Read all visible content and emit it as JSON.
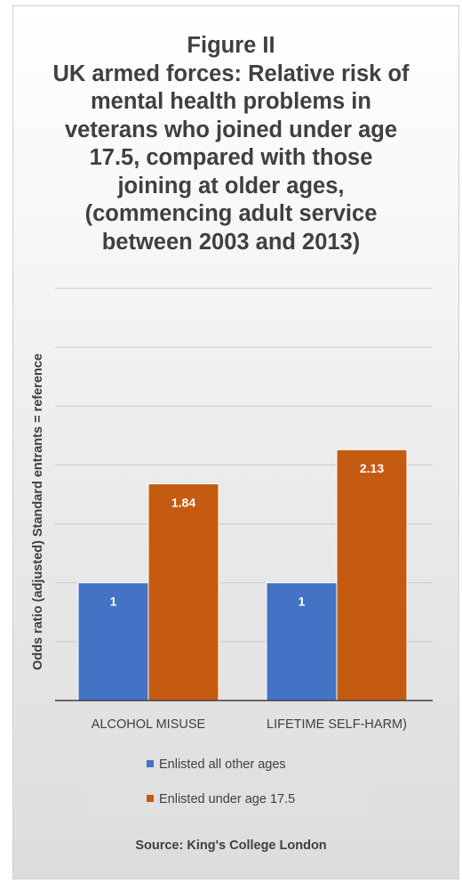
{
  "chart_data": {
    "type": "bar",
    "title_lines": [
      "Figure II",
      "UK armed forces: Relative risk of",
      "mental health problems in",
      "veterans who joined under age",
      "17.5, compared with those",
      "joining at older ages,",
      "(commencing adult service",
      "between 2003 and 2013)"
    ],
    "ylabel": "Odds ratio (adjusted) Standard entrants = reference",
    "xlabel": "",
    "categories": [
      "ALCOHOL MISUSE",
      "LIFETIME SELF-HARM)"
    ],
    "series": [
      {
        "name": "Enlisted all other ages",
        "values": [
          1,
          1
        ],
        "color": "#4472c4"
      },
      {
        "name": "Enlisted under age 17.5",
        "values": [
          1.84,
          2.13
        ],
        "color": "#c55a11"
      }
    ],
    "ylim": [
      0,
      3.5
    ],
    "grid": true,
    "legend_position": "bottom",
    "source": "Source: King's College London"
  }
}
